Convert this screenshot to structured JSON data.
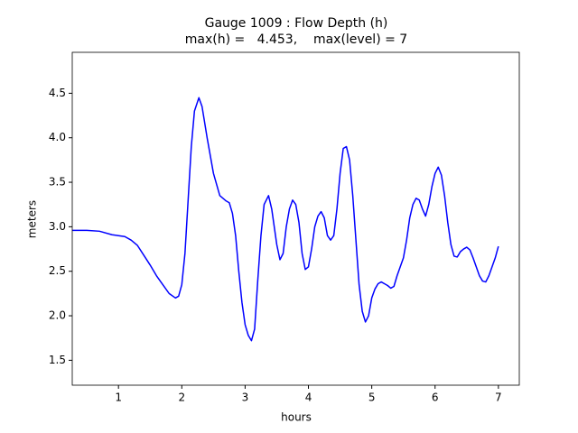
{
  "chart_data": {
    "type": "line",
    "title": "Gauge 1009 : Flow Depth (h)",
    "subtitle": "max(h) =   4.453,    max(level) = 7",
    "x_label": "hours",
    "y_label": "meters",
    "xlim": [
      0.27,
      7.33
    ],
    "ylim": [
      1.22,
      4.96
    ],
    "xticks": [
      1,
      2,
      3,
      4,
      5,
      6,
      7
    ],
    "yticks": [
      1.5,
      {
        "value": 2,
        "label": "2.0"
      },
      2.5,
      {
        "value": 3,
        "label": "3.0"
      },
      3.5,
      {
        "value": 4,
        "label": "4.0"
      },
      4.5
    ],
    "x": [
      0.27,
      0.5,
      0.7,
      0.9,
      1.0,
      1.1,
      1.2,
      1.3,
      1.4,
      1.5,
      1.6,
      1.7,
      1.8,
      1.9,
      1.95,
      2.0,
      2.05,
      2.1,
      2.15,
      2.2,
      2.27,
      2.32,
      2.4,
      2.5,
      2.6,
      2.7,
      2.75,
      2.8,
      2.85,
      2.9,
      2.95,
      3.0,
      3.05,
      3.1,
      3.15,
      3.2,
      3.25,
      3.3,
      3.37,
      3.42,
      3.5,
      3.55,
      3.6,
      3.65,
      3.7,
      3.75,
      3.8,
      3.85,
      3.9,
      3.95,
      4.0,
      4.05,
      4.1,
      4.15,
      4.2,
      4.25,
      4.3,
      4.35,
      4.4,
      4.45,
      4.5,
      4.55,
      4.6,
      4.65,
      4.7,
      4.75,
      4.8,
      4.85,
      4.9,
      4.95,
      5.0,
      5.05,
      5.1,
      5.15,
      5.2,
      5.25,
      5.3,
      5.35,
      5.4,
      5.5,
      5.55,
      5.6,
      5.65,
      5.7,
      5.75,
      5.8,
      5.85,
      5.9,
      5.95,
      6.0,
      6.05,
      6.1,
      6.15,
      6.2,
      6.25,
      6.3,
      6.35,
      6.4,
      6.45,
      6.5,
      6.55,
      6.6,
      6.65,
      6.7,
      6.75,
      6.8,
      6.85,
      6.9,
      6.95,
      7.0
    ],
    "series": [
      {
        "color": "#0000ff",
        "values": [
          2.96,
          2.96,
          2.95,
          2.91,
          2.9,
          2.89,
          2.85,
          2.79,
          2.68,
          2.57,
          2.45,
          2.35,
          2.25,
          2.2,
          2.22,
          2.35,
          2.7,
          3.3,
          3.9,
          4.3,
          4.45,
          4.35,
          4.0,
          3.6,
          3.35,
          3.29,
          3.27,
          3.15,
          2.9,
          2.5,
          2.15,
          1.9,
          1.78,
          1.72,
          1.85,
          2.4,
          2.9,
          3.25,
          3.35,
          3.2,
          2.8,
          2.63,
          2.7,
          3.0,
          3.2,
          3.3,
          3.25,
          3.05,
          2.7,
          2.52,
          2.55,
          2.75,
          3.0,
          3.12,
          3.17,
          3.1,
          2.9,
          2.85,
          2.9,
          3.2,
          3.6,
          3.88,
          3.9,
          3.75,
          3.35,
          2.85,
          2.35,
          2.05,
          1.93,
          2.0,
          2.2,
          2.3,
          2.36,
          2.38,
          2.36,
          2.34,
          2.31,
          2.33,
          2.45,
          2.65,
          2.85,
          3.1,
          3.25,
          3.32,
          3.3,
          3.2,
          3.12,
          3.25,
          3.45,
          3.6,
          3.67,
          3.58,
          3.35,
          3.05,
          2.8,
          2.67,
          2.66,
          2.72,
          2.75,
          2.77,
          2.74,
          2.65,
          2.55,
          2.45,
          2.39,
          2.38,
          2.45,
          2.55,
          2.65,
          2.78
        ]
      }
    ]
  }
}
